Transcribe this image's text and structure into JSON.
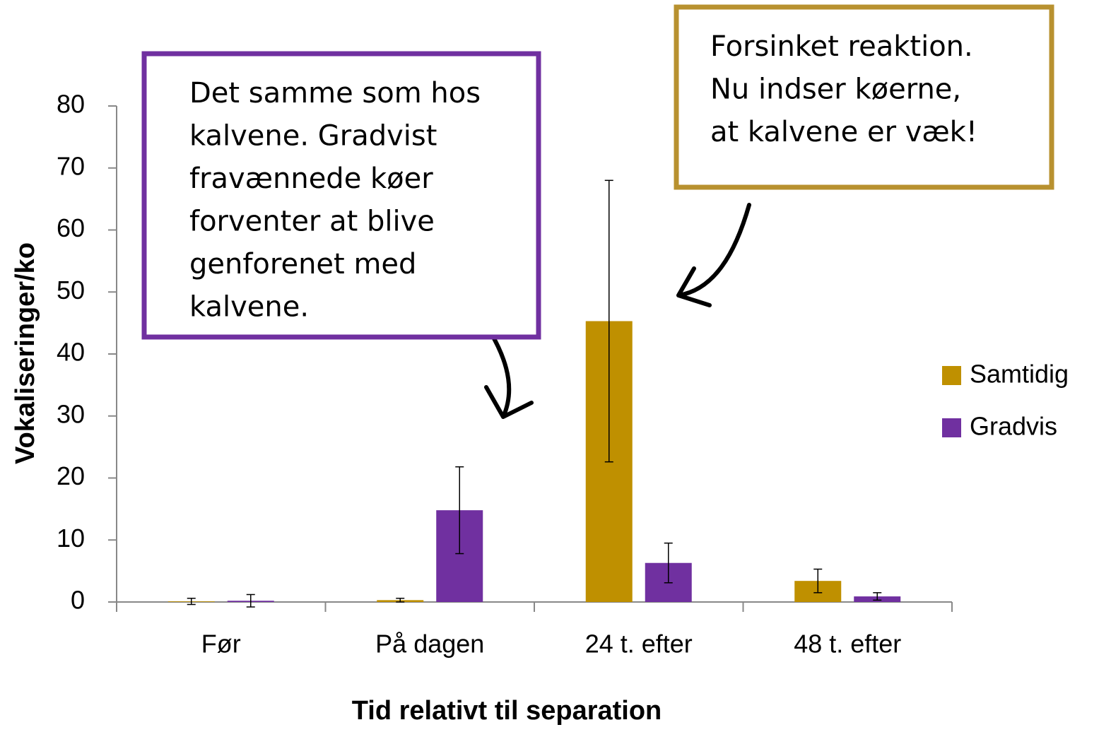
{
  "chart_data": {
    "type": "bar",
    "ylabel": "Vokaliseringer/ko",
    "xlabel": "Tid relativt til separation",
    "categories": [
      "Før",
      "På dagen",
      "24 t. efter",
      "48 t. efter"
    ],
    "series": [
      {
        "name": "Samtidig",
        "color": "#bf9000",
        "values": [
          0.1,
          0.3,
          45.3,
          3.4
        ],
        "errors": [
          0.5,
          0.3,
          22.7,
          1.9
        ]
      },
      {
        "name": "Gradvis",
        "color": "#7030a0",
        "values": [
          0.2,
          14.8,
          6.3,
          0.9
        ],
        "errors": [
          1.0,
          7.0,
          3.2,
          0.6
        ]
      }
    ],
    "ylim": [
      0,
      80
    ],
    "yticks": [
      0,
      10,
      20,
      30,
      40,
      50,
      60,
      70,
      80
    ],
    "legend": "right",
    "annotations": [
      {
        "lines": [
          "Det samme som hos",
          "kalvene. Gradvist",
          "fravænnede køer",
          "forventer at blive",
          "genforenet med",
          "kalvene."
        ],
        "color": "#7030a0"
      },
      {
        "lines": [
          "Forsinket reaktion.",
          "Nu indser køerne,",
          "at kalvene er væk!"
        ],
        "color": "#b8912f"
      }
    ]
  }
}
